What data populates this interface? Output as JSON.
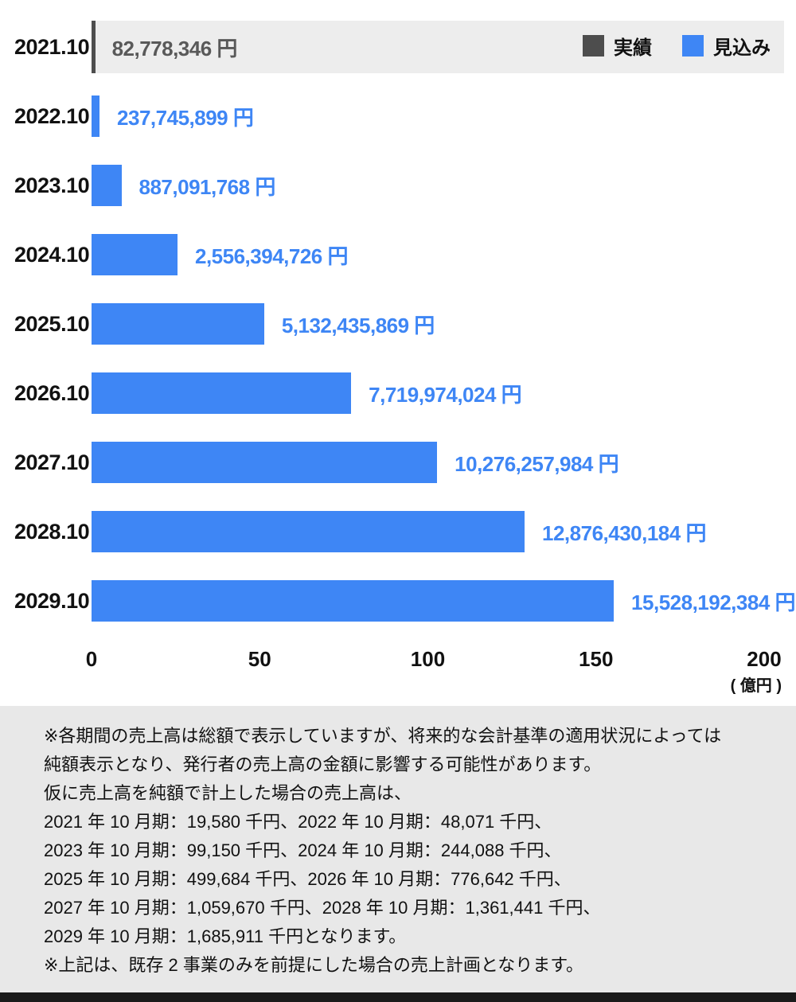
{
  "chart": {
    "rows": [
      {
        "year": "2021.10",
        "label": "82,778,346 円",
        "percent": 0.41,
        "type": "actual"
      },
      {
        "year": "2022.10",
        "label": "237,745,899 円",
        "percent": 1.19,
        "type": "forecast"
      },
      {
        "year": "2023.10",
        "label": "887,091,768 円",
        "percent": 4.44,
        "type": "forecast"
      },
      {
        "year": "2024.10",
        "label": "2,556,394,726 円",
        "percent": 12.78,
        "type": "forecast"
      },
      {
        "year": "2025.10",
        "label": "5,132,435,869 円",
        "percent": 25.66,
        "type": "forecast"
      },
      {
        "year": "2026.10",
        "label": "7,719,974,024 円",
        "percent": 38.6,
        "type": "forecast"
      },
      {
        "year": "2027.10",
        "label": "10,276,257,984 円",
        "percent": 51.38,
        "type": "forecast"
      },
      {
        "year": "2028.10",
        "label": "12,876,430,184 円",
        "percent": 64.38,
        "type": "forecast"
      },
      {
        "year": "2029.10",
        "label": "15,528,192,384 円",
        "percent": 77.64,
        "type": "forecast"
      }
    ],
    "legend": [
      {
        "label": "実績",
        "color": "#4d4d4d"
      },
      {
        "label": "見込み",
        "color": "#3e86f5"
      }
    ],
    "x_ticks": [
      0,
      50,
      100,
      150,
      200
    ],
    "xlim": [
      0,
      200
    ],
    "unit_label": "( 億円 )",
    "colors": {
      "forecast_bar": "#3e86f5",
      "actual_bar": "#4d4d4d",
      "first_row_band": "#ededed",
      "footnote_bg": "#e8e8e8",
      "bottom_strip": "#1a1a1a"
    }
  },
  "chart_data": {
    "type": "bar",
    "orientation": "horizontal",
    "title": "",
    "categories": [
      "2021.10",
      "2022.10",
      "2023.10",
      "2024.10",
      "2025.10",
      "2026.10",
      "2027.10",
      "2028.10",
      "2029.10"
    ],
    "values_yen": [
      82778346,
      237745899,
      887091768,
      2556394726,
      5132435869,
      7719974024,
      10276257984,
      12876430184,
      15528192384
    ],
    "values_oku": [
      0.83,
      2.38,
      8.87,
      25.56,
      51.32,
      77.2,
      102.76,
      128.76,
      155.28
    ],
    "series_type": [
      "actual",
      "forecast",
      "forecast",
      "forecast",
      "forecast",
      "forecast",
      "forecast",
      "forecast",
      "forecast"
    ],
    "xlabel": "( 億円 )",
    "ylabel": "",
    "x_ticks": [
      0,
      50,
      100,
      150,
      200
    ],
    "xlim": [
      0,
      200
    ],
    "grid": false,
    "legend_entries": [
      "実績",
      "見込み"
    ],
    "legend_position": "top-right"
  },
  "footnote": {
    "lines": [
      "※各期間の売上高は総額で表示していますが、将来的な会計基準の適用状況によっては",
      "純額表示となり、発行者の売上高の金額に影響する可能性があります。",
      "仮に売上高を純額で計上した場合の売上高は、",
      "2021 年 10 月期：19,580 千円、2022 年 10 月期：48,071 千円、",
      "2023 年 10 月期：99,150 千円、2024 年 10 月期：244,088 千円、",
      "2025 年 10 月期：499,684 千円、2026 年 10 月期：776,642 千円、",
      "2027 年 10 月期：1,059,670 千円、2028 年 10 月期：1,361,441 千円、",
      "2029 年 10 月期：1,685,911 千円となります。",
      "※上記は、既存 2 事業のみを前提にした場合の売上計画となります。"
    ]
  }
}
